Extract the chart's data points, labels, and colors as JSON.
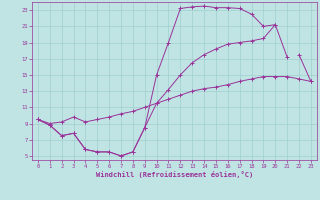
{
  "xlabel": "Windchill (Refroidissement éolien,°C)",
  "xlim": [
    -0.5,
    23.5
  ],
  "ylim": [
    4.5,
    24
  ],
  "xticks": [
    0,
    1,
    2,
    3,
    4,
    5,
    6,
    7,
    8,
    9,
    10,
    11,
    12,
    13,
    14,
    15,
    16,
    17,
    18,
    19,
    20,
    21,
    22,
    23
  ],
  "yticks": [
    5,
    7,
    9,
    11,
    13,
    15,
    17,
    19,
    21,
    23
  ],
  "background_color": "#c0e4e4",
  "grid_color": "#9fcfcf",
  "line_color": "#993399",
  "line1_x": [
    0,
    1,
    2,
    3,
    4,
    5,
    6,
    7,
    8,
    9,
    10,
    11,
    12,
    13,
    14,
    15,
    16,
    17,
    18,
    19,
    20,
    21,
    22,
    23
  ],
  "line1_y": [
    9.5,
    8.8,
    7.5,
    7.8,
    5.8,
    5.5,
    5.5,
    5.0,
    5.5,
    8.5,
    15.0,
    19.0,
    23.2,
    23.4,
    23.5,
    23.3,
    23.3,
    23.2,
    22.5,
    21.0,
    21.2,
    17.2,
    null,
    null
  ],
  "line2_x": [
    0,
    1,
    2,
    3,
    4,
    5,
    6,
    7,
    8,
    9,
    10,
    11,
    12,
    13,
    14,
    15,
    16,
    17,
    18,
    19,
    20,
    21,
    22,
    23
  ],
  "line2_y": [
    9.5,
    8.8,
    7.5,
    7.8,
    5.8,
    5.5,
    5.5,
    5.0,
    5.5,
    8.5,
    11.5,
    13.2,
    15.0,
    16.5,
    17.5,
    18.2,
    18.8,
    19.0,
    19.2,
    19.5,
    21.2,
    null,
    17.5,
    14.2
  ],
  "line3_x": [
    0,
    1,
    2,
    3,
    4,
    5,
    6,
    7,
    8,
    9,
    10,
    11,
    12,
    13,
    14,
    15,
    16,
    17,
    18,
    19,
    20,
    21,
    22,
    23
  ],
  "line3_y": [
    9.5,
    9.0,
    9.2,
    9.8,
    9.2,
    9.5,
    9.8,
    10.2,
    10.5,
    11.0,
    11.5,
    12.0,
    12.5,
    13.0,
    13.3,
    13.5,
    13.8,
    14.2,
    14.5,
    14.8,
    14.8,
    14.8,
    14.5,
    14.2
  ]
}
